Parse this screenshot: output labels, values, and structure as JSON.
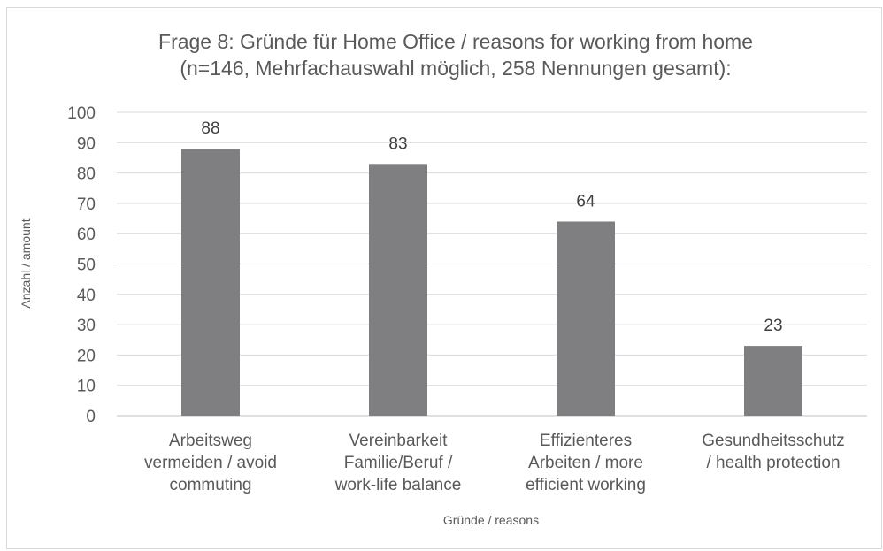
{
  "chart_data": {
    "type": "bar",
    "title": [
      "Frage 8: Gründe für Home Office / reasons for working from home",
      "(n=146, Mehrfachauswahl möglich, 258 Nennungen gesamt):"
    ],
    "categories": [
      [
        "Arbeitsweg",
        "vermeiden / avoid",
        "commuting"
      ],
      [
        "Vereinbarkeit",
        "Familie/Beruf /",
        "work-life balance"
      ],
      [
        "Effizienteres",
        "Arbeiten / more",
        "efficient working"
      ],
      [
        "Gesundheitsschutz",
        "/ health protection"
      ]
    ],
    "values": [
      88,
      83,
      64,
      23
    ],
    "xlabel": "Gründe / reasons",
    "ylabel": "Anzahl / amount",
    "ylim": [
      0,
      100
    ],
    "yticks": [
      0,
      10,
      20,
      30,
      40,
      50,
      60,
      70,
      80,
      90,
      100
    ],
    "data_labels": true,
    "grid": true,
    "legend": "none",
    "colors": {
      "bar": "#7f7f82",
      "text": "#595959",
      "grid": "#d9d9d9"
    }
  }
}
